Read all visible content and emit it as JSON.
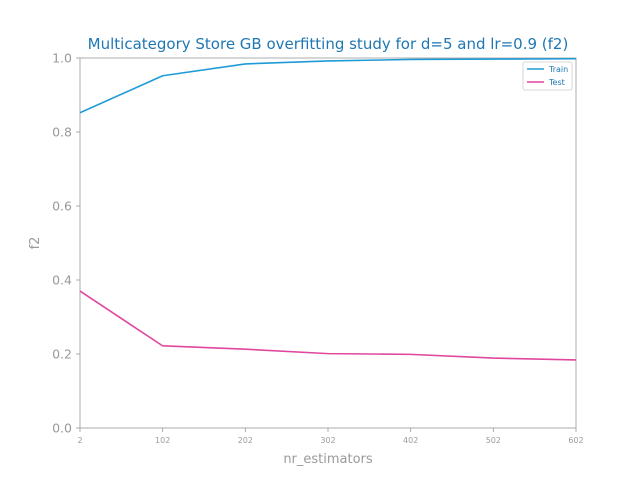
{
  "chart_data": {
    "type": "line",
    "title": "Multicategory Store GB overfitting study for d=5 and lr=0.9 (f2)",
    "xlabel": "nr_estimators",
    "ylabel": "f2",
    "x": [
      2,
      102,
      202,
      302,
      402,
      502,
      602
    ],
    "xticks": [
      "2",
      "102",
      "202",
      "302",
      "402",
      "502",
      "602"
    ],
    "yticks": [
      "0.0",
      "0.2",
      "0.4",
      "0.6",
      "0.8",
      "1.0"
    ],
    "xlim": [
      2,
      602
    ],
    "ylim": [
      0,
      1
    ],
    "grid": false,
    "legend_position": "top-right",
    "series": [
      {
        "name": "Train",
        "color": "#1f9bd6",
        "values": [
          0.852,
          0.952,
          0.984,
          0.992,
          0.996,
          0.997,
          0.998
        ]
      },
      {
        "name": "Test",
        "color": "#e0479e",
        "values": [
          0.37,
          0.222,
          0.213,
          0.201,
          0.199,
          0.189,
          0.184
        ]
      }
    ]
  }
}
